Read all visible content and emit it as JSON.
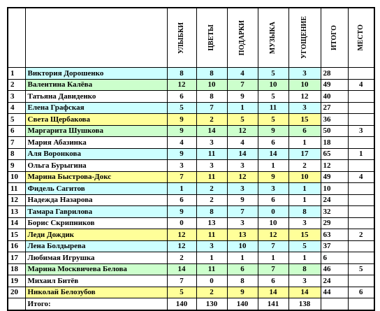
{
  "table": {
    "headers": [
      "УЛЫБКИ",
      "ЦВЕТЫ",
      "ПОДАРКИ",
      "МУЗЫКА",
      "УГОЩЕНИЕ",
      "ИТОГО",
      "МЕСТО"
    ],
    "rows": [
      {
        "n": 1,
        "name": "Виктория Дорошенко",
        "scores": [
          8,
          8,
          4,
          5,
          3
        ],
        "total": 28,
        "place": null,
        "color": "#ccffff"
      },
      {
        "n": 2,
        "name": "Валентина Калёва",
        "scores": [
          12,
          10,
          7,
          10,
          10
        ],
        "total": 49,
        "place": 4,
        "color": "#ccffcc"
      },
      {
        "n": 3,
        "name": "Татьяна Давиденко",
        "scores": [
          6,
          8,
          9,
          5,
          12
        ],
        "total": 40,
        "place": null,
        "color": "#ffffff"
      },
      {
        "n": 4,
        "name": "Елена Графская",
        "scores": [
          5,
          7,
          1,
          11,
          3
        ],
        "total": 27,
        "place": null,
        "color": "#ccffff"
      },
      {
        "n": 5,
        "name": "Света Щербакова",
        "scores": [
          9,
          2,
          5,
          5,
          15
        ],
        "total": 36,
        "place": null,
        "color": "#ffff99"
      },
      {
        "n": 6,
        "name": "Маргарита Шушкова",
        "scores": [
          9,
          14,
          12,
          9,
          6
        ],
        "total": 50,
        "place": 3,
        "color": "#ccffcc"
      },
      {
        "n": 7,
        "name": "Мария Абазинка",
        "scores": [
          4,
          3,
          4,
          6,
          1
        ],
        "total": 18,
        "place": null,
        "color": "#ffffff"
      },
      {
        "n": 8,
        "name": "Аля Воронкова",
        "scores": [
          9,
          11,
          14,
          14,
          17
        ],
        "total": 65,
        "place": 1,
        "color": "#ccffff"
      },
      {
        "n": 9,
        "name": "Ольга Бурыгина",
        "scores": [
          3,
          3,
          3,
          1,
          2
        ],
        "total": 12,
        "place": null,
        "color": "#ffffff"
      },
      {
        "n": 10,
        "name": "Марина Быстрова-Докс",
        "scores": [
          7,
          11,
          12,
          9,
          10
        ],
        "total": 49,
        "place": 4,
        "color": "#ffff99"
      },
      {
        "n": 11,
        "name": "Фидель Сагитов",
        "scores": [
          1,
          2,
          3,
          3,
          1
        ],
        "total": 10,
        "place": null,
        "color": "#ccffff"
      },
      {
        "n": 12,
        "name": "Надежда Назарова",
        "scores": [
          6,
          2,
          9,
          6,
          1
        ],
        "total": 24,
        "place": null,
        "color": "#ffffff"
      },
      {
        "n": 13,
        "name": "Тамара Гаврилова",
        "scores": [
          9,
          8,
          7,
          0,
          8
        ],
        "total": 32,
        "place": null,
        "color": "#ccffff"
      },
      {
        "n": 14,
        "name": "Борис Скрипников",
        "scores": [
          0,
          13,
          3,
          10,
          3
        ],
        "total": 29,
        "place": null,
        "color": "#ffffff"
      },
      {
        "n": 15,
        "name": "Леди Дождик",
        "scores": [
          12,
          11,
          13,
          12,
          15
        ],
        "total": 63,
        "place": 2,
        "color": "#ffff99"
      },
      {
        "n": 16,
        "name": "Лена Болдырева",
        "scores": [
          12,
          3,
          10,
          7,
          5
        ],
        "total": 37,
        "place": null,
        "color": "#ccffff"
      },
      {
        "n": 17,
        "name": "Любимая Игрушка",
        "scores": [
          2,
          1,
          1,
          1,
          1
        ],
        "total": 6,
        "place": null,
        "color": "#ffffff"
      },
      {
        "n": 18,
        "name": "Марина Москвичева Белова",
        "scores": [
          14,
          11,
          6,
          7,
          8
        ],
        "total": 46,
        "place": 5,
        "color": "#ccffcc"
      },
      {
        "n": 19,
        "name": "Михаил Битёв",
        "scores": [
          7,
          0,
          8,
          6,
          3
        ],
        "total": 24,
        "place": null,
        "color": "#ffffff"
      },
      {
        "n": 20,
        "name": "Николай Белозубов",
        "scores": [
          5,
          2,
          9,
          14,
          14
        ],
        "total": 44,
        "place": 6,
        "color": "#ffff99"
      }
    ],
    "footer": {
      "label": "Итого:",
      "totals": [
        140,
        130,
        140,
        141,
        138
      ]
    }
  }
}
